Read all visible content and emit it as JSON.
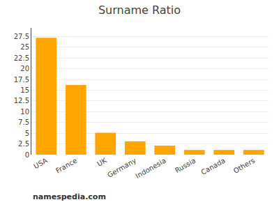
{
  "chart_data": {
    "type": "bar",
    "title": "Surname Ratio",
    "categories": [
      "USA",
      "France",
      "UK",
      "Germany",
      "Indonesia",
      "Russia",
      "Canada",
      "Others"
    ],
    "values": [
      27.2,
      16.2,
      5.1,
      3.1,
      2.1,
      1.1,
      1.1,
      1.1
    ],
    "color": "#FFA500",
    "ylim": [
      0,
      29.5
    ],
    "yticks": [
      0,
      2.5,
      5,
      7.5,
      10,
      12.5,
      15,
      17.5,
      20,
      22.5,
      25,
      27.5
    ],
    "grid": true,
    "annotations": [
      "namespedia.com"
    ]
  }
}
